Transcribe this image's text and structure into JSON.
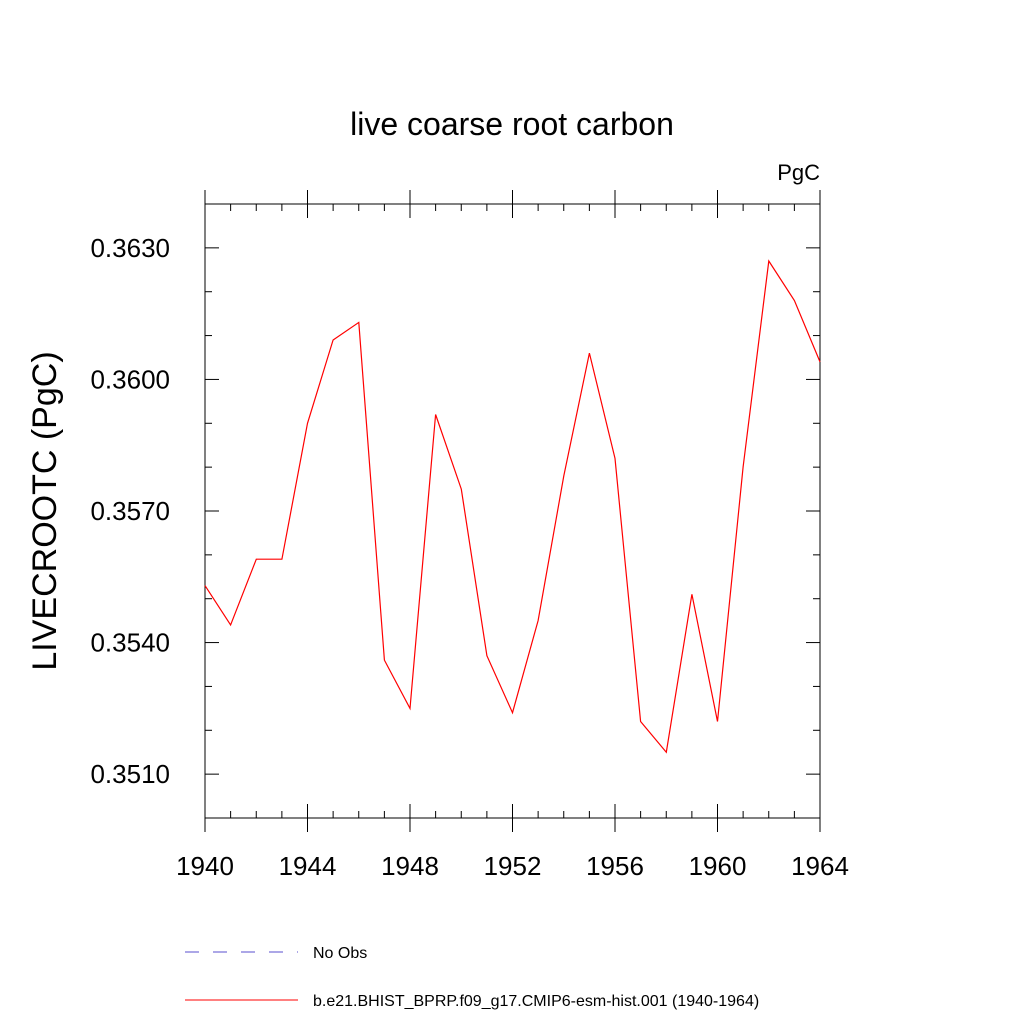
{
  "chart_data": {
    "type": "line",
    "title": "live coarse root carbon",
    "units_label": "PgC",
    "ylabel": "LIVECROOTC  (PgC)",
    "xlabel": "",
    "xlim": [
      1940,
      1964
    ],
    "ylim": [
      0.35,
      0.364
    ],
    "x_ticks": [
      1940,
      1944,
      1948,
      1952,
      1956,
      1960,
      1964
    ],
    "x_tick_labels": [
      "1940",
      "1944",
      "1948",
      "1952",
      "1956",
      "1960",
      "1964"
    ],
    "y_ticks": [
      0.351,
      0.354,
      0.357,
      0.36,
      0.363
    ],
    "y_tick_labels": [
      "0.3510",
      "0.3540",
      "0.3570",
      "0.3600",
      "0.3630"
    ],
    "x_minor_step": 1,
    "y_minor_step": 0.001,
    "series": [
      {
        "name": "No Obs",
        "color": "#5a4fcf",
        "dash": true,
        "x": [],
        "values": []
      },
      {
        "name": "b.e21.BHIST_BPRP.f09_g17.CMIP6-esm-hist.001 (1940-1964)",
        "color": "#ff0000",
        "dash": false,
        "x": [
          1940,
          1941,
          1942,
          1943,
          1944,
          1945,
          1946,
          1947,
          1948,
          1949,
          1950,
          1951,
          1952,
          1953,
          1954,
          1955,
          1956,
          1957,
          1958,
          1959,
          1960,
          1961,
          1962,
          1963,
          1964
        ],
        "values": [
          0.3553,
          0.3544,
          0.3559,
          0.3559,
          0.359,
          0.3609,
          0.3613,
          0.3536,
          0.3525,
          0.3592,
          0.3575,
          0.3537,
          0.3524,
          0.3545,
          0.3578,
          0.3606,
          0.3582,
          0.3522,
          0.3515,
          0.3551,
          0.3522,
          0.358,
          0.3627,
          0.3618,
          0.3604
        ]
      }
    ],
    "legend_position": "bottom-center"
  }
}
